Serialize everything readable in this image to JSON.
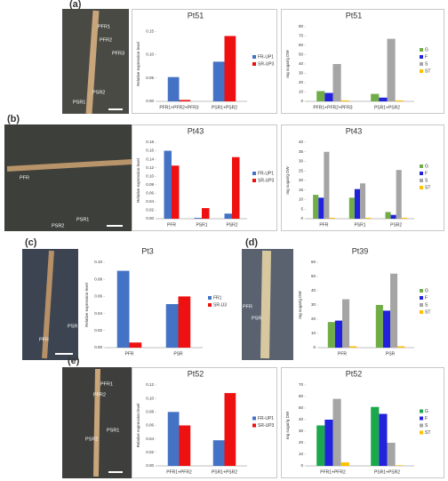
{
  "panels": [
    {
      "label": "(a)",
      "photo_labels": [
        "PFR1",
        "PFR2",
        "PFR3",
        "PSR2",
        "PSR1"
      ]
    },
    {
      "label": "(b)",
      "photo_labels": [
        "PFR",
        "PSR1",
        "PSR2"
      ]
    },
    {
      "label": "(c)",
      "photo_labels": [
        "PSR",
        "PFR"
      ]
    },
    {
      "label": "(d)",
      "photo_labels": [
        "PFR",
        "PSR"
      ]
    },
    {
      "label": "(e)",
      "photo_labels": [
        "PFR1",
        "PFR2",
        "PSR1",
        "PSR2"
      ]
    }
  ],
  "chart_data": [
    {
      "type": "bar",
      "title": "Pt51",
      "y_label": "Relative expression level",
      "categories": [
        "PFR1+PFR2+PFR3",
        "PSR1+PSR2"
      ],
      "series": [
        {
          "name": "FR-UP1",
          "color": "#4472c4",
          "values": [
            0.052,
            0.085
          ]
        },
        {
          "name": "SR-UP3",
          "color": "#ee1111",
          "values": [
            0.003,
            0.14
          ]
        }
      ],
      "ylim": [
        0,
        0.16
      ],
      "yticks": [
        {
          "value": 0,
          "label": "0.00"
        },
        {
          "value": 0.05,
          "label": "0.05"
        },
        {
          "value": 0.1,
          "label": "0.10"
        },
        {
          "value": 0.15,
          "label": "0.15"
        }
      ],
      "grid": false
    },
    {
      "type": "bar",
      "title": "Pt51",
      "y_label": "mg sugar/g DW",
      "categories": [
        "PFR1+PFR2+PFR3",
        "PSR1+PSR2"
      ],
      "series": [
        {
          "name": "G",
          "color": "#70ad47",
          "values": [
            11,
            8
          ]
        },
        {
          "name": "F",
          "color": "#2222dd",
          "values": [
            9,
            4
          ]
        },
        {
          "name": "S",
          "color": "#a5a5a5",
          "values": [
            40,
            67
          ]
        },
        {
          "name": "ST",
          "color": "#ffc000",
          "values": [
            1,
            1
          ]
        }
      ],
      "ylim": [
        0,
        80
      ],
      "yticks": [
        0,
        10,
        20,
        30,
        40,
        50,
        60,
        70,
        80
      ],
      "grid": false
    },
    {
      "type": "bar",
      "title": "Pt43",
      "y_label": "Relative expression level",
      "categories": [
        "PFR",
        "PSR1",
        "PSR2"
      ],
      "series": [
        {
          "name": "FR-UP1",
          "color": "#4472c4",
          "values": [
            0.16,
            0.002,
            0.012
          ]
        },
        {
          "name": "SR-UP3",
          "color": "#ee1111",
          "values": [
            0.125,
            0.025,
            0.145
          ]
        }
      ],
      "ylim": [
        0,
        0.18
      ],
      "yticks": [
        {
          "value": 0,
          "label": "0.00"
        },
        {
          "value": 0.02,
          "label": "0.02"
        },
        {
          "value": 0.04,
          "label": "0.04"
        },
        {
          "value": 0.06,
          "label": "0.06"
        },
        {
          "value": 0.08,
          "label": "0.08"
        },
        {
          "value": 0.1,
          "label": "0.10"
        },
        {
          "value": 0.12,
          "label": "0.12"
        },
        {
          "value": 0.14,
          "label": "0.14"
        },
        {
          "value": 0.16,
          "label": "0.16"
        },
        {
          "value": 0.18,
          "label": "0.18"
        }
      ],
      "grid": false
    },
    {
      "type": "bar",
      "title": "Pt43",
      "y_label": "mg sugar/g DW",
      "categories": [
        "PFR",
        "PSR1",
        "PSR2"
      ],
      "series": [
        {
          "name": "G",
          "color": "#70ad47",
          "values": [
            12.5,
            11,
            3.5
          ]
        },
        {
          "name": "F",
          "color": "#2222dd",
          "values": [
            11,
            15.5,
            2
          ]
        },
        {
          "name": "S",
          "color": "#a5a5a5",
          "values": [
            35,
            18.5,
            25.5
          ]
        },
        {
          "name": "ST",
          "color": "#ffc000",
          "values": [
            0.5,
            0.5,
            0.5
          ]
        }
      ],
      "ylim": [
        0,
        40
      ],
      "yticks": [
        0,
        5,
        10,
        15,
        20,
        25,
        30,
        35,
        40
      ],
      "grid": false
    },
    {
      "type": "bar",
      "title": "Pt3",
      "y_label": "Relative expression level",
      "categories": [
        "PFR",
        "PSR"
      ],
      "series": [
        {
          "name": "FR1",
          "color": "#4472c4",
          "values": [
            0.09,
            0.051
          ]
        },
        {
          "name": "SR-U3",
          "color": "#ee1111",
          "values": [
            0.006,
            0.06
          ]
        }
      ],
      "ylim": [
        0,
        0.1
      ],
      "yticks": [
        {
          "value": 0,
          "label": "0.00"
        },
        {
          "value": 0.02,
          "label": "0.02"
        },
        {
          "value": 0.04,
          "label": "0.04"
        },
        {
          "value": 0.06,
          "label": "0.06"
        },
        {
          "value": 0.08,
          "label": "0.08"
        },
        {
          "value": 0.1,
          "label": "0.10"
        }
      ],
      "grid": false
    },
    {
      "type": "bar",
      "title": "Pt39",
      "y_label": "mg sugar/g DW",
      "categories": [
        "PFR",
        "PSR"
      ],
      "series": [
        {
          "name": "G",
          "color": "#70ad47",
          "values": [
            18,
            30
          ]
        },
        {
          "name": "F",
          "color": "#2222dd",
          "values": [
            19,
            26
          ]
        },
        {
          "name": "S",
          "color": "#a5a5a5",
          "values": [
            34,
            52
          ]
        },
        {
          "name": "ST",
          "color": "#ffc000",
          "values": [
            1,
            1
          ]
        }
      ],
      "ylim": [
        0,
        60
      ],
      "yticks": [
        0,
        10,
        20,
        30,
        40,
        50,
        60
      ],
      "grid": false
    },
    {
      "type": "bar",
      "title": "Pt52",
      "y_label": "Relative expression level",
      "categories": [
        "PFR1+PFR2",
        "PSR1+PSR2"
      ],
      "series": [
        {
          "name": "FR-UP1",
          "color": "#4472c4",
          "values": [
            0.08,
            0.038
          ]
        },
        {
          "name": "SR-UP3",
          "color": "#ee1111",
          "values": [
            0.06,
            0.108
          ]
        }
      ],
      "ylim": [
        0,
        0.12
      ],
      "yticks": [
        {
          "value": 0,
          "label": "0.00"
        },
        {
          "value": 0.02,
          "label": "0.02"
        },
        {
          "value": 0.04,
          "label": "0.04"
        },
        {
          "value": 0.06,
          "label": "0.06"
        },
        {
          "value": 0.08,
          "label": "0.08"
        },
        {
          "value": 0.1,
          "label": "0.10"
        },
        {
          "value": 0.12,
          "label": "0.12"
        }
      ],
      "grid": false
    },
    {
      "type": "bar",
      "title": "Pt52",
      "y_label": "mg sugar/g DW",
      "categories": [
        "PFR1+PFR2",
        "PSR1+PSR2"
      ],
      "series": [
        {
          "name": "G",
          "color": "#1aa84a",
          "values": [
            35,
            51
          ]
        },
        {
          "name": "F",
          "color": "#2222dd",
          "values": [
            40,
            45
          ]
        },
        {
          "name": "S",
          "color": "#a5a5a5",
          "values": [
            58,
            20
          ]
        },
        {
          "name": "ST",
          "color": "#ffc000",
          "values": [
            3,
            0.5
          ]
        }
      ],
      "ylim": [
        0,
        70
      ],
      "yticks": [
        0,
        10,
        20,
        30,
        40,
        50,
        60,
        70
      ],
      "grid": false
    }
  ]
}
